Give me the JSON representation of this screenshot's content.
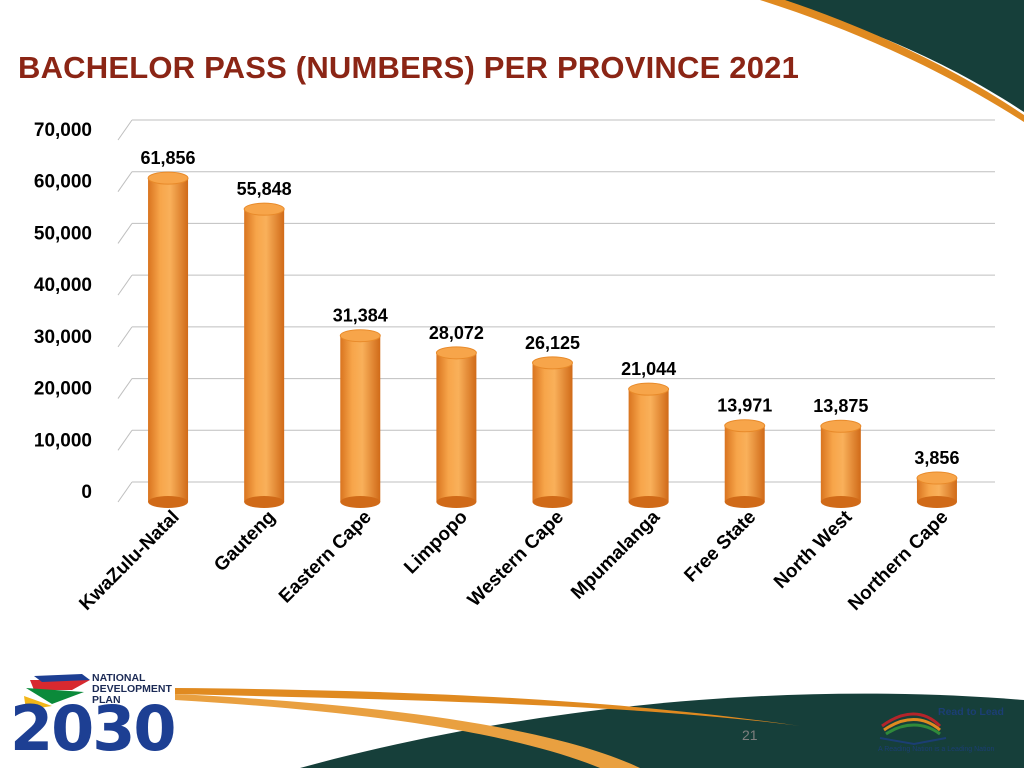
{
  "title": "BACHELOR PASS (NUMBERS) PER PROVINCE 2021",
  "page_number": "21",
  "logo_left": {
    "text": "NATIONAL DEVELOPMENT PLAN",
    "year": "2030"
  },
  "logo_right": {
    "text": "Read to Lead",
    "tagline": "A Reading Nation is a Leading Nation"
  },
  "colors": {
    "title": "#8b2515",
    "bar": "#f39a3c",
    "bar_top": "#f7a54a",
    "accent_dark": "#163f3a",
    "accent_orange": "#e08a20"
  },
  "chart_data": {
    "type": "bar",
    "title": "",
    "xlabel": "",
    "ylabel": "",
    "categories": [
      "KwaZulu-Natal",
      "Gauteng",
      "Eastern Cape",
      "Limpopo",
      "Western Cape",
      "Mpumalanga",
      "Free State",
      "North West",
      "Northern Cape"
    ],
    "values": [
      61856,
      55848,
      31384,
      28072,
      26125,
      21044,
      13971,
      13875,
      3856
    ],
    "data_labels": [
      "61,856",
      "55,848",
      "31,384",
      "28,072",
      "26,125",
      "21,044",
      "13,971",
      "13,875",
      "3,856"
    ],
    "ylim": [
      0,
      70000
    ],
    "yticks": [
      0,
      10000,
      20000,
      30000,
      40000,
      50000,
      60000,
      70000
    ],
    "ytick_labels": [
      "0",
      "10,000",
      "20,000",
      "30,000",
      "40,000",
      "50,000",
      "60,000",
      "70,000"
    ],
    "grid": true,
    "legend": "none",
    "style": "3d-cylinder"
  }
}
